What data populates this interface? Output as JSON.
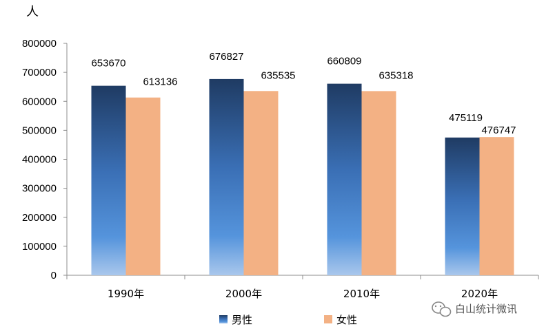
{
  "chart_data": {
    "type": "bar",
    "ylabel": "人",
    "categories": [
      "1990年",
      "2000年",
      "2010年",
      "2020年"
    ],
    "series": [
      {
        "name": "男性",
        "values": [
          653670,
          676827,
          660809,
          475119
        ],
        "color": "#3a6fb5"
      },
      {
        "name": "女性",
        "values": [
          613136,
          635535,
          635318,
          476747
        ],
        "color": "#f3b184"
      }
    ],
    "ylim": [
      0,
      800000
    ],
    "yticks": [
      0,
      100000,
      200000,
      300000,
      400000,
      500000,
      600000,
      700000,
      800000
    ],
    "grid": false,
    "legend": "bottom-center"
  },
  "watermark": {
    "text": "白山统计微讯",
    "icon": "wechat-icon"
  }
}
